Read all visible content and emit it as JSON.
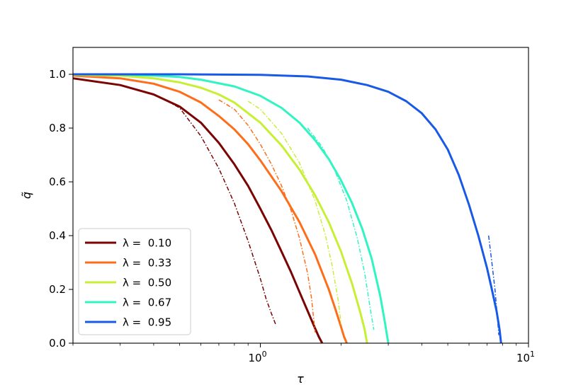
{
  "chart_data": {
    "type": "line",
    "title": "",
    "xlabel": "τ",
    "ylabel": "q̃",
    "xscale": "log",
    "xlim": [
      0.2,
      10
    ],
    "ylim": [
      0.0,
      1.1
    ],
    "x_ticks": [
      {
        "value": 1,
        "base": "10",
        "exp": "0"
      },
      {
        "value": 10,
        "base": "10",
        "exp": "1"
      }
    ],
    "y_ticks": [
      {
        "value": 0.0,
        "label": "0.0"
      },
      {
        "value": 0.2,
        "label": "0.2"
      },
      {
        "value": 0.4,
        "label": "0.4"
      },
      {
        "value": 0.6,
        "label": "0.6"
      },
      {
        "value": 0.8,
        "label": "0.8"
      },
      {
        "value": 1.0,
        "label": "1.0"
      }
    ],
    "grid": false,
    "legend_position": "lower-left",
    "series": [
      {
        "name": "λ =  0.10",
        "color": "#7a0403",
        "solid": {
          "x": [
            0.2,
            0.3,
            0.4,
            0.5,
            0.6,
            0.7,
            0.8,
            0.9,
            1.0,
            1.1,
            1.2,
            1.3,
            1.4,
            1.5,
            1.6,
            1.65,
            1.7
          ],
          "y": [
            0.985,
            0.96,
            0.925,
            0.88,
            0.82,
            0.745,
            0.665,
            0.585,
            0.5,
            0.42,
            0.34,
            0.265,
            0.19,
            0.12,
            0.055,
            0.025,
            0.0
          ]
        },
        "dashdot": {
          "x": [
            0.45,
            0.5,
            0.6,
            0.7,
            0.8,
            0.9,
            1.0,
            1.05,
            1.1,
            1.14
          ],
          "y": [
            0.9,
            0.875,
            0.77,
            0.65,
            0.52,
            0.38,
            0.24,
            0.165,
            0.11,
            0.07
          ]
        }
      },
      {
        "name": "λ =  0.33",
        "color": "#fe6e1a",
        "solid": {
          "x": [
            0.2,
            0.3,
            0.4,
            0.5,
            0.6,
            0.7,
            0.8,
            0.9,
            1.0,
            1.2,
            1.4,
            1.6,
            1.8,
            1.9,
            2.0,
            2.05,
            2.1
          ],
          "y": [
            0.995,
            0.985,
            0.965,
            0.935,
            0.895,
            0.845,
            0.795,
            0.74,
            0.68,
            0.565,
            0.45,
            0.33,
            0.2,
            0.13,
            0.06,
            0.025,
            0.0
          ]
        },
        "dashdot": {
          "x": [
            0.7,
            0.8,
            0.9,
            1.0,
            1.1,
            1.2,
            1.3,
            1.4,
            1.5,
            1.55,
            1.6
          ],
          "y": [
            0.905,
            0.87,
            0.81,
            0.74,
            0.665,
            0.585,
            0.495,
            0.39,
            0.26,
            0.17,
            0.04
          ]
        }
      },
      {
        "name": "λ =  0.50",
        "color": "#c7ef34",
        "solid": {
          "x": [
            0.2,
            0.3,
            0.4,
            0.5,
            0.6,
            0.7,
            0.8,
            1.0,
            1.2,
            1.4,
            1.6,
            1.8,
            2.0,
            2.2,
            2.35,
            2.45,
            2.5
          ],
          "y": [
            0.998,
            0.995,
            0.985,
            0.97,
            0.95,
            0.925,
            0.895,
            0.82,
            0.735,
            0.645,
            0.55,
            0.45,
            0.34,
            0.22,
            0.12,
            0.05,
            0.0
          ]
        },
        "dashdot": {
          "x": [
            0.9,
            1.0,
            1.2,
            1.4,
            1.6,
            1.75,
            1.85,
            1.95,
            2.0
          ],
          "y": [
            0.9,
            0.87,
            0.78,
            0.67,
            0.53,
            0.4,
            0.29,
            0.16,
            0.07
          ]
        }
      },
      {
        "name": "λ =  0.67",
        "color": "#30f5c3",
        "solid": {
          "x": [
            0.2,
            0.3,
            0.4,
            0.5,
            0.6,
            0.8,
            1.0,
            1.2,
            1.4,
            1.6,
            1.8,
            2.0,
            2.2,
            2.4,
            2.6,
            2.8,
            2.9,
            3.0
          ],
          "y": [
            1.0,
            0.999,
            0.995,
            0.99,
            0.98,
            0.955,
            0.92,
            0.875,
            0.82,
            0.755,
            0.685,
            0.605,
            0.52,
            0.425,
            0.315,
            0.175,
            0.09,
            0.0
          ]
        },
        "dashdot": {
          "x": [
            1.5,
            1.7,
            1.9,
            2.1,
            2.3,
            2.45,
            2.55,
            2.65
          ],
          "y": [
            0.8,
            0.73,
            0.64,
            0.53,
            0.39,
            0.26,
            0.15,
            0.05
          ]
        }
      },
      {
        "name": "λ =  0.95",
        "color": "#1859e7",
        "solid": {
          "x": [
            0.2,
            0.5,
            1.0,
            1.5,
            2.0,
            2.5,
            3.0,
            3.5,
            4.0,
            4.5,
            5.0,
            5.5,
            6.0,
            6.5,
            7.0,
            7.3,
            7.6,
            7.8,
            7.9
          ],
          "y": [
            1.0,
            1.0,
            0.998,
            0.992,
            0.98,
            0.96,
            0.935,
            0.9,
            0.855,
            0.795,
            0.72,
            0.625,
            0.515,
            0.4,
            0.28,
            0.2,
            0.12,
            0.05,
            0.0
          ]
        },
        "dashdot": {
          "x": [
            7.1,
            7.3,
            7.5,
            7.65,
            7.75
          ],
          "y": [
            0.4,
            0.3,
            0.2,
            0.1,
            0.03
          ]
        }
      }
    ]
  }
}
